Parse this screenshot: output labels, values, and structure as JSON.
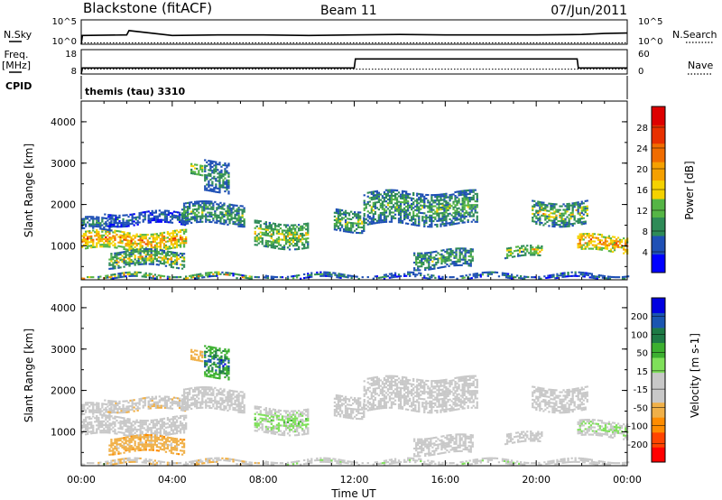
{
  "header": {
    "station": "Blackstone (fitACF)",
    "beam": "Beam 11",
    "date": "07/Jun/2011"
  },
  "panels": {
    "nsky": {
      "left_label": "N.Sky",
      "right_label": "N.Search",
      "left_ticks": [
        "10^5",
        "10^0"
      ],
      "right_ticks": [
        "10^5",
        "10^0"
      ]
    },
    "freq": {
      "left_label_1": "Freq.",
      "left_label_2": "[MHz]",
      "right_label": "Nave",
      "left_ticks": [
        "18",
        "8"
      ],
      "right_ticks": [
        "60",
        "0"
      ]
    },
    "cpid": {
      "label": "CPID",
      "mode": "themis (tau) 3310"
    }
  },
  "colors": {
    "power": [
      "#0000ff",
      "#1f50b5",
      "#2e8b57",
      "#55b545",
      "#f5d200",
      "#f5a000",
      "#f06c00",
      "#e83000",
      "#dd0000"
    ],
    "velocity": [
      "#ff0000",
      "#ff4400",
      "#ff8c00",
      "#f0b048",
      "#c8c8c8",
      "#c8c8c8",
      "#7fe05a",
      "#3cb030",
      "#1e7a46",
      "#1a55b0",
      "#0000e0"
    ]
  },
  "chart_data": [
    {
      "type": "line",
      "name": "nsky-nsearch",
      "series": [
        {
          "name": "N.Sky",
          "style": "solid",
          "x_hours": [
            0,
            0.05,
            2,
            2.1,
            4,
            6,
            8,
            10,
            12,
            14,
            16,
            18,
            20,
            22,
            23,
            24
          ],
          "values_log10": [
            0,
            1.8,
            1.9,
            2.8,
            1.8,
            1.9,
            1.9,
            1.8,
            1.9,
            2.0,
            1.9,
            1.9,
            1.9,
            2.0,
            2.2,
            2.3
          ]
        },
        {
          "name": "N.Search",
          "style": "dotted",
          "x_hours": [
            0,
            24
          ],
          "values_log10": [
            0,
            0
          ]
        }
      ],
      "ylim_log10": [
        0,
        5
      ]
    },
    {
      "type": "line",
      "name": "freq-nave",
      "series": [
        {
          "name": "Freq.",
          "style": "solid",
          "x_hours": [
            0,
            0.05,
            12,
            12.05,
            21.8,
            21.85,
            24
          ],
          "values": [
            8,
            10.5,
            10.5,
            14.2,
            14.2,
            10.5,
            10.5
          ],
          "ylim": [
            8,
            18
          ]
        },
        {
          "name": "Nave",
          "style": "dotted",
          "x_hours": [
            0,
            24
          ],
          "values": [
            12,
            12
          ],
          "ylim": [
            0,
            60
          ]
        }
      ]
    },
    {
      "type": "heatmap",
      "name": "power",
      "xlabel": "",
      "ylabel": "Slant Range [km]",
      "xlim_hours": [
        0,
        24
      ],
      "ylim": [
        180,
        4500
      ],
      "yticks": [
        "1000",
        "2000",
        "3000",
        "4000"
      ],
      "colorbar_label": "Power [dB]",
      "colorbar_ticks": [
        "28",
        "24",
        "20",
        "16",
        "12",
        "8",
        "4"
      ],
      "colorbar_range": [
        0,
        30
      ],
      "echo_regions": [
        {
          "t0": 0.0,
          "t1": 4.6,
          "r0": 900,
          "r1": 1350,
          "v0": 10,
          "v1": 28
        },
        {
          "t0": 0.0,
          "t1": 1.3,
          "r0": 1350,
          "r1": 1650,
          "v0": 4,
          "v1": 12
        },
        {
          "t0": 1.0,
          "t1": 4.6,
          "r0": 1500,
          "r1": 1800,
          "v0": 2,
          "v1": 10
        },
        {
          "t0": 1.2,
          "t1": 4.5,
          "r0": 480,
          "r1": 850,
          "v0": 4,
          "v1": 24
        },
        {
          "t0": 0.0,
          "t1": 8.0,
          "r0": 190,
          "r1": 300,
          "v0": 2,
          "v1": 28
        },
        {
          "t0": 4.4,
          "t1": 7.2,
          "r0": 1500,
          "r1": 2000,
          "v0": 4,
          "v1": 16
        },
        {
          "t0": 5.4,
          "t1": 6.5,
          "r0": 2300,
          "r1": 3050,
          "v0": 4,
          "v1": 12
        },
        {
          "t0": 4.8,
          "t1": 5.3,
          "r0": 2700,
          "r1": 2950,
          "v0": 8,
          "v1": 20
        },
        {
          "t0": 7.6,
          "t1": 10.0,
          "r0": 950,
          "r1": 1550,
          "v0": 6,
          "v1": 20
        },
        {
          "t0": 11.1,
          "t1": 12.4,
          "r0": 1350,
          "r1": 1850,
          "v0": 4,
          "v1": 18
        },
        {
          "t0": 12.4,
          "t1": 17.4,
          "r0": 1500,
          "r1": 2300,
          "v0": 4,
          "v1": 16
        },
        {
          "t0": 14.6,
          "t1": 17.2,
          "r0": 450,
          "r1": 900,
          "v0": 4,
          "v1": 16
        },
        {
          "t0": 18.6,
          "t1": 20.2,
          "r0": 700,
          "r1": 950,
          "v0": 6,
          "v1": 22
        },
        {
          "t0": 19.8,
          "t1": 22.2,
          "r0": 1500,
          "r1": 2050,
          "v0": 4,
          "v1": 22
        },
        {
          "t0": 21.8,
          "t1": 24.0,
          "r0": 850,
          "r1": 1250,
          "v0": 10,
          "v1": 28
        },
        {
          "t0": 8.0,
          "t1": 24.0,
          "r0": 190,
          "r1": 300,
          "v0": 2,
          "v1": 14
        }
      ]
    },
    {
      "type": "heatmap",
      "name": "velocity",
      "xlabel": "Time UT",
      "ylabel": "Slant Range [km]",
      "xlim_hours": [
        0,
        24
      ],
      "ylim": [
        180,
        4500
      ],
      "xticks": [
        "00:00",
        "04:00",
        "08:00",
        "12:00",
        "16:00",
        "20:00",
        "00:00"
      ],
      "yticks": [
        "1000",
        "2000",
        "3000",
        "4000"
      ],
      "colorbar_label": "Velocity [m s-1]",
      "colorbar_ticks": [
        "200",
        "100",
        "50",
        "15",
        "-15",
        "-50",
        "-100",
        "-200"
      ],
      "colorbar_range": [
        -250,
        250
      ],
      "echo_regions": [
        {
          "t0": 0.0,
          "t1": 4.6,
          "r0": 900,
          "r1": 1350,
          "v0": -60,
          "v1": 10
        },
        {
          "t0": 0.0,
          "t1": 1.3,
          "r0": 1350,
          "r1": 1650,
          "v0": -40,
          "v1": 10
        },
        {
          "t0": 1.0,
          "t1": 4.6,
          "r0": 1500,
          "r1": 1800,
          "v0": -80,
          "v1": 5
        },
        {
          "t0": 1.2,
          "t1": 4.5,
          "r0": 480,
          "r1": 850,
          "v0": -120,
          "v1": -40
        },
        {
          "t0": 0.0,
          "t1": 8.0,
          "r0": 190,
          "r1": 300,
          "v0": -100,
          "v1": 60
        },
        {
          "t0": 4.4,
          "t1": 7.2,
          "r0": 1500,
          "r1": 2000,
          "v0": -15,
          "v1": 10
        },
        {
          "t0": 5.4,
          "t1": 6.5,
          "r0": 2300,
          "r1": 3050,
          "v0": 60,
          "v1": 240
        },
        {
          "t0": 4.8,
          "t1": 5.3,
          "r0": 2700,
          "r1": 2950,
          "v0": -100,
          "v1": -40
        },
        {
          "t0": 7.6,
          "t1": 10.0,
          "r0": 950,
          "r1": 1550,
          "v0": -10,
          "v1": 90
        },
        {
          "t0": 11.1,
          "t1": 12.4,
          "r0": 1350,
          "r1": 1850,
          "v0": -10,
          "v1": 10
        },
        {
          "t0": 12.4,
          "t1": 17.4,
          "r0": 1500,
          "r1": 2300,
          "v0": -12,
          "v1": 12
        },
        {
          "t0": 14.6,
          "t1": 17.2,
          "r0": 450,
          "r1": 900,
          "v0": -10,
          "v1": 20
        },
        {
          "t0": 18.6,
          "t1": 20.2,
          "r0": 700,
          "r1": 950,
          "v0": -10,
          "v1": 10
        },
        {
          "t0": 19.8,
          "t1": 22.2,
          "r0": 1500,
          "r1": 2050,
          "v0": -12,
          "v1": 12
        },
        {
          "t0": 21.8,
          "t1": 24.0,
          "r0": 850,
          "r1": 1250,
          "v0": -10,
          "v1": 70
        },
        {
          "t0": 8.0,
          "t1": 24.0,
          "r0": 190,
          "r1": 300,
          "v0": -60,
          "v1": 80
        }
      ]
    }
  ]
}
